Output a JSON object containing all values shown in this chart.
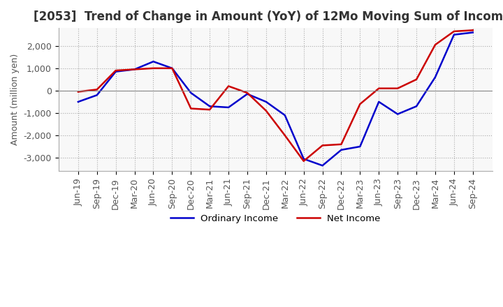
{
  "title": "[2053]  Trend of Change in Amount (YoY) of 12Mo Moving Sum of Incomes",
  "ylabel": "Amount (million yen)",
  "x_labels": [
    "Jun-19",
    "Sep-19",
    "Dec-19",
    "Mar-20",
    "Jun-20",
    "Sep-20",
    "Dec-20",
    "Mar-21",
    "Jun-21",
    "Sep-21",
    "Dec-21",
    "Mar-22",
    "Jun-22",
    "Sep-22",
    "Dec-22",
    "Mar-23",
    "Jun-23",
    "Sep-23",
    "Dec-23",
    "Mar-24",
    "Jun-24",
    "Sep-24"
  ],
  "ordinary_income": [
    -500,
    -200,
    850,
    950,
    1300,
    1000,
    -100,
    -700,
    -750,
    -150,
    -500,
    -1100,
    -3050,
    -3350,
    -2650,
    -2500,
    -500,
    -1050,
    -700,
    600,
    2500,
    2600
  ],
  "net_income": [
    -50,
    50,
    900,
    950,
    1000,
    1000,
    -800,
    -850,
    200,
    -100,
    -900,
    -2000,
    -3150,
    -2450,
    -2400,
    -600,
    100,
    100,
    500,
    2050,
    2650,
    2700
  ],
  "ordinary_income_color": "#0000cc",
  "net_income_color": "#cc0000",
  "ylim": [
    -3600,
    2800
  ],
  "yticks": [
    -3000,
    -2000,
    -1000,
    0,
    1000,
    2000
  ],
  "background_color": "#ffffff",
  "grid_color": "#aaaaaa",
  "title_color": "#333333",
  "title_fontsize": 12,
  "ylabel_fontsize": 9,
  "tick_fontsize": 9
}
